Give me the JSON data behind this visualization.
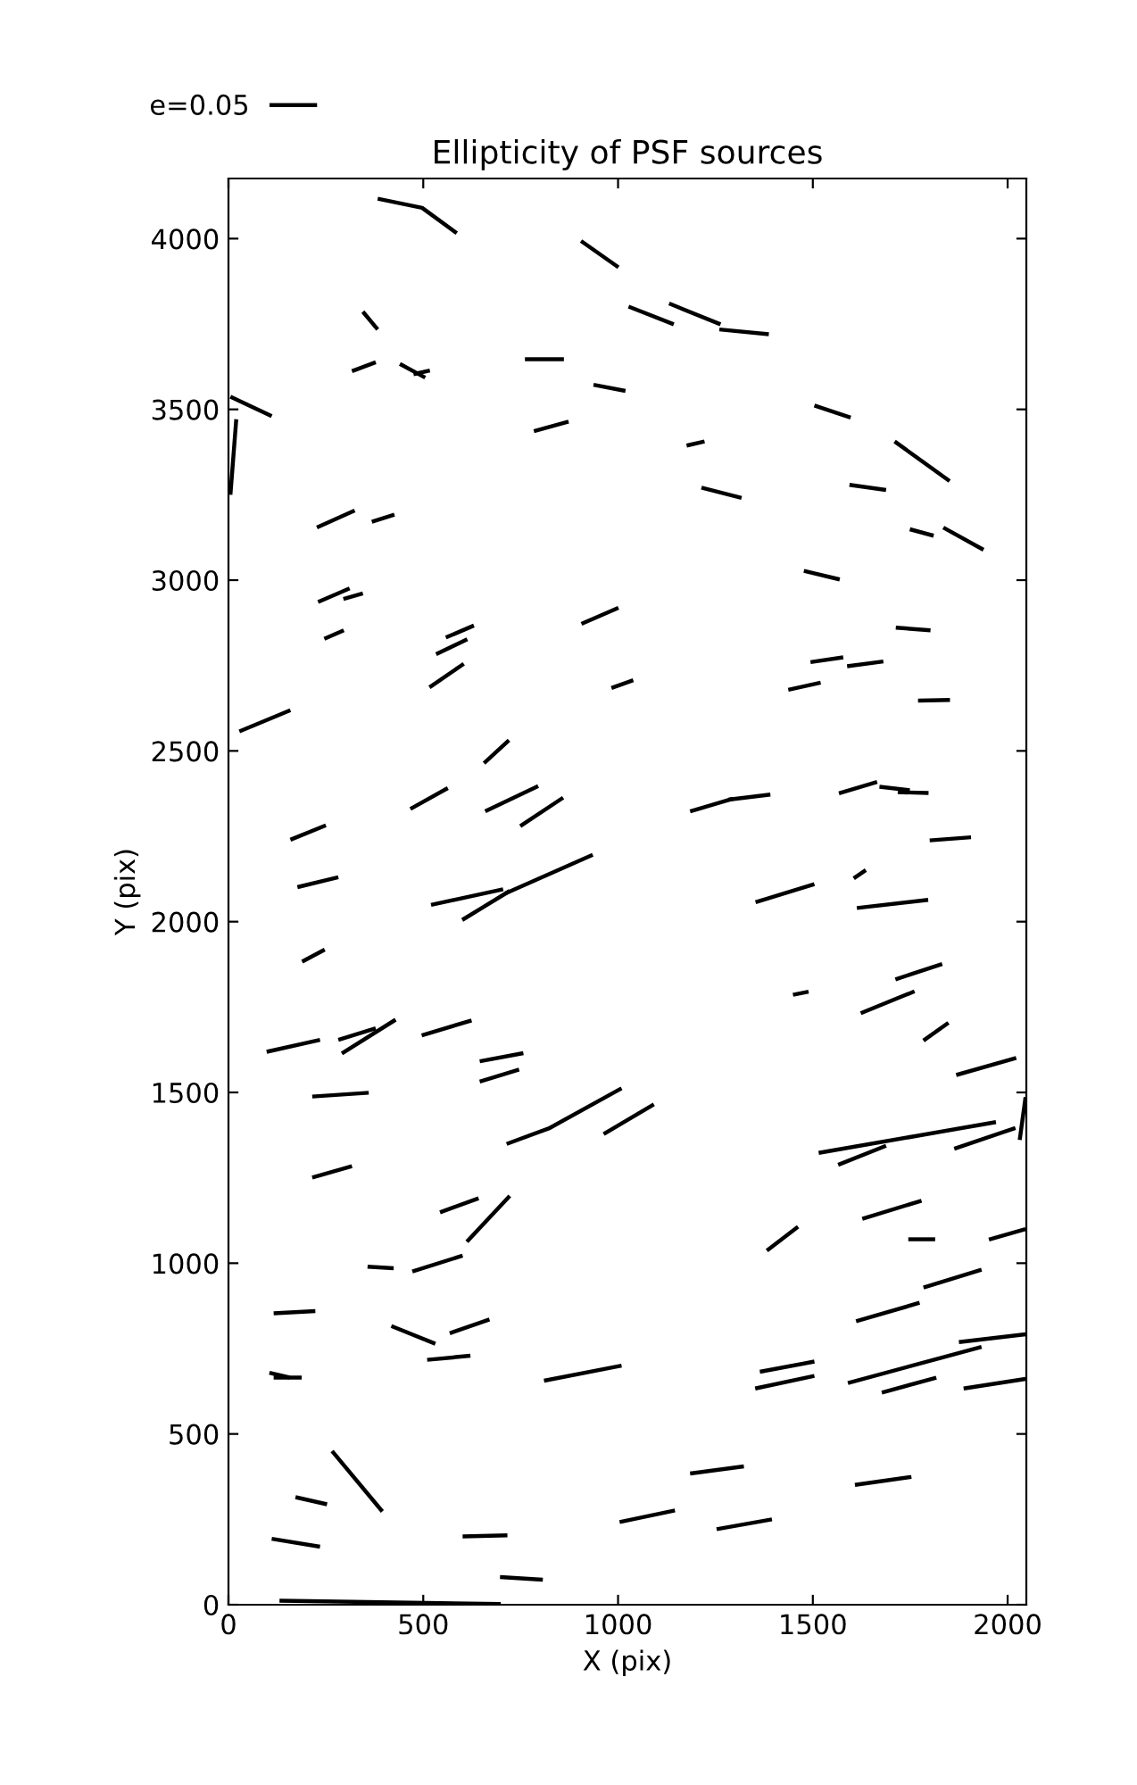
{
  "chart_data": {
    "type": "line",
    "title": "Ellipticity of PSF sources",
    "xlabel": "X (pix)",
    "ylabel": "Y (pix)",
    "xlim": [
      0,
      2048
    ],
    "ylim": [
      0,
      4176
    ],
    "xticks": [
      0,
      500,
      1000,
      1500,
      2000
    ],
    "yticks": [
      0,
      500,
      1000,
      1500,
      2000,
      2500,
      3000,
      3500,
      4000
    ],
    "grid": false,
    "legend": "top left",
    "line_style": "solid",
    "marker": "none",
    "color": "#000000",
    "series": [
      {
        "name": "e=0.05",
        "x": [
          383,
          497,
          586
        ],
        "values": [
          4117,
          4090,
          4016
        ]
      },
      {
        "x": [
          905,
          1001
        ],
        "values": [
          3993,
          3916
        ]
      },
      {
        "x": [
          345,
          383
        ],
        "values": [
          3786,
          3734
        ]
      },
      {
        "x": [
          317,
          378
        ],
        "values": [
          3612,
          3638
        ]
      },
      {
        "x": [
          440,
          505
        ],
        "values": [
          3633,
          3593
        ]
      },
      {
        "x": [
          475,
          517
        ],
        "values": [
          3603,
          3614
        ]
      },
      {
        "x": [
          761,
          861
        ],
        "values": [
          3647,
          3647
        ]
      },
      {
        "x": [
          937,
          1019
        ],
        "values": [
          3572,
          3554
        ]
      },
      {
        "x": [
          5,
          111
        ],
        "values": [
          3537,
          3480
        ]
      },
      {
        "x": [
          20,
          5
        ],
        "values": [
          3471,
          3250
        ]
      },
      {
        "x": [
          784,
          873
        ],
        "values": [
          3436,
          3464
        ]
      },
      {
        "x": [
          227,
          324
        ],
        "values": [
          3154,
          3204
        ]
      },
      {
        "x": [
          368,
          426
        ],
        "values": [
          3171,
          3192
        ]
      },
      {
        "x": [
          230,
          311
        ],
        "values": [
          2936,
          2976
        ]
      },
      {
        "x": [
          295,
          345
        ],
        "values": [
          2945,
          2961
        ]
      },
      {
        "x": [
          246,
          296
        ],
        "values": [
          2828,
          2853
        ]
      },
      {
        "x": [
          558,
          630
        ],
        "values": [
          2832,
          2867
        ]
      },
      {
        "x": [
          533,
          613
        ],
        "values": [
          2783,
          2827
        ]
      },
      {
        "x": [
          516,
          604
        ],
        "values": [
          2686,
          2755
        ]
      },
      {
        "x": [
          906,
          1001
        ],
        "values": [
          2872,
          2919
        ]
      },
      {
        "x": [
          983,
          1039
        ],
        "values": [
          2684,
          2707
        ]
      },
      {
        "x": [
          28,
          159
        ],
        "values": [
          2557,
          2619
        ]
      },
      {
        "x": [
          656,
          720
        ],
        "values": [
          2464,
          2531
        ]
      },
      {
        "x": [
          467,
          563
        ],
        "values": [
          2330,
          2391
        ]
      },
      {
        "x": [
          659,
          795
        ],
        "values": [
          2323,
          2397
        ]
      },
      {
        "x": [
          749,
          859
        ],
        "values": [
          2280,
          2363
        ]
      },
      {
        "x": [
          159,
          250
        ],
        "values": [
          2240,
          2282
        ]
      },
      {
        "x": [
          177,
          282
        ],
        "values": [
          2101,
          2130
        ]
      },
      {
        "x": [
          711,
          935
        ],
        "values": [
          2083,
          2196
        ]
      },
      {
        "x": [
          520,
          705
        ],
        "values": [
          2049,
          2095
        ]
      },
      {
        "x": [
          600,
          722
        ],
        "values": [
          2005,
          2090
        ]
      },
      {
        "x": [
          1027,
          1143
        ],
        "values": [
          3801,
          3749
        ]
      },
      {
        "x": [
          1131,
          1263
        ],
        "values": [
          3810,
          3749
        ]
      },
      {
        "x": [
          1260,
          1387
        ],
        "values": [
          3734,
          3720
        ]
      },
      {
        "x": [
          1504,
          1597
        ],
        "values": [
          3511,
          3476
        ]
      },
      {
        "x": [
          1176,
          1222
        ],
        "values": [
          3394,
          3406
        ]
      },
      {
        "x": [
          1710,
          1851
        ],
        "values": [
          3406,
          3290
        ]
      },
      {
        "x": [
          1214,
          1317
        ],
        "values": [
          3271,
          3241
        ]
      },
      {
        "x": [
          1594,
          1688
        ],
        "values": [
          3279,
          3264
        ]
      },
      {
        "x": [
          1749,
          1810
        ],
        "values": [
          3149,
          3130
        ]
      },
      {
        "x": [
          1835,
          1938
        ],
        "values": [
          3154,
          3089
        ]
      },
      {
        "x": [
          1477,
          1569
        ],
        "values": [
          3027,
          3002
        ]
      },
      {
        "x": [
          1713,
          1802
        ],
        "values": [
          2861,
          2853
        ]
      },
      {
        "x": [
          1494,
          1578
        ],
        "values": [
          2760,
          2774
        ]
      },
      {
        "x": [
          1588,
          1681
        ],
        "values": [
          2748,
          2762
        ]
      },
      {
        "x": [
          1437,
          1520
        ],
        "values": [
          2679,
          2700
        ]
      },
      {
        "x": [
          1770,
          1852
        ],
        "values": [
          2647,
          2649
        ]
      },
      {
        "x": [
          1185,
          1295
        ],
        "values": [
          2323,
          2360
        ]
      },
      {
        "x": [
          1283,
          1391
        ],
        "values": [
          2357,
          2372
        ]
      },
      {
        "x": [
          1567,
          1665
        ],
        "values": [
          2376,
          2409
        ]
      },
      {
        "x": [
          1671,
          1749
        ],
        "values": [
          2395,
          2385
        ]
      },
      {
        "x": [
          1718,
          1797
        ],
        "values": [
          2379,
          2377
        ]
      },
      {
        "x": [
          1800,
          1906
        ],
        "values": [
          2238,
          2247
        ]
      },
      {
        "x": [
          1605,
          1636
        ],
        "values": [
          2127,
          2151
        ]
      },
      {
        "x": [
          1353,
          1504
        ],
        "values": [
          2057,
          2110
        ]
      },
      {
        "x": [
          1613,
          1796
        ],
        "values": [
          2040,
          2064
        ]
      },
      {
        "x": [
          1712,
          1832
        ],
        "values": [
          1831,
          1876
        ]
      },
      {
        "x": [
          1449,
          1489
        ],
        "values": [
          1786,
          1795
        ]
      },
      {
        "x": [
          1623,
          1761
        ],
        "values": [
          1732,
          1796
        ]
      },
      {
        "x": [
          1784,
          1848
        ],
        "values": [
          1652,
          1704
        ]
      },
      {
        "x": [
          1868,
          2022
        ],
        "values": [
          1551,
          1601
        ]
      },
      {
        "x": [
          963,
          1092
        ],
        "values": [
          1378,
          1465
        ]
      },
      {
        "x": [
          714,
          825,
          1009
        ],
        "values": [
          1349,
          1396,
          1512
        ]
      },
      {
        "x": [
          1515,
          1970
        ],
        "values": [
          1323,
          1413
        ]
      },
      {
        "x": [
          1565,
          1688
        ],
        "values": [
          1288,
          1344
        ]
      },
      {
        "x": [
          1863,
          2020
        ],
        "values": [
          1335,
          1396
        ]
      },
      {
        "x": [
          2031,
          2046
        ],
        "values": [
          1361,
          1486
        ]
      },
      {
        "x": [
          1382,
          1462
        ],
        "values": [
          1037,
          1107
        ]
      },
      {
        "x": [
          1627,
          1779
        ],
        "values": [
          1130,
          1183
        ]
      },
      {
        "x": [
          1745,
          1814
        ],
        "values": [
          1070,
          1070
        ]
      },
      {
        "x": [
          1952,
          2046
        ],
        "values": [
          1069,
          1100
        ]
      },
      {
        "x": [
          1784,
          1933
        ],
        "values": [
          929,
          981
        ]
      },
      {
        "x": [
          1611,
          1774
        ],
        "values": [
          830,
          884
        ]
      },
      {
        "x": [
          1875,
          2046
        ],
        "values": [
          769,
          792
        ]
      },
      {
        "x": [
          1590,
          1933
        ],
        "values": [
          649,
          755
        ]
      },
      {
        "x": [
          1677,
          1817
        ],
        "values": [
          621,
          665
        ]
      },
      {
        "x": [
          1887,
          2046
        ],
        "values": [
          633,
          661
        ]
      },
      {
        "x": [
          1364,
          1504
        ],
        "values": [
          682,
          712
        ]
      },
      {
        "x": [
          1352,
          1504
        ],
        "values": [
          633,
          670
        ]
      },
      {
        "x": [
          1185,
          1323
        ],
        "values": [
          384,
          405
        ]
      },
      {
        "x": [
          1608,
          1753
        ],
        "values": [
          351,
          374
        ]
      },
      {
        "x": [
          1004,
          1146
        ],
        "values": [
          242,
          276
        ]
      },
      {
        "x": [
          1253,
          1395
        ],
        "values": [
          221,
          250
        ]
      },
      {
        "x": [
          810,
          1009
        ],
        "values": [
          656,
          700
        ]
      },
      {
        "x": [
          189,
          247
        ],
        "values": [
          1883,
          1918
        ]
      },
      {
        "x": [
          98,
          235
        ],
        "values": [
          1619,
          1654
        ]
      },
      {
        "x": [
          282,
          378
        ],
        "values": [
          1654,
          1688
        ]
      },
      {
        "x": [
          291,
          429
        ],
        "values": [
          1614,
          1713
        ]
      },
      {
        "x": [
          496,
          624
        ],
        "values": [
          1667,
          1711
        ]
      },
      {
        "x": [
          645,
          757
        ],
        "values": [
          1591,
          1615
        ]
      },
      {
        "x": [
          645,
          746
        ],
        "values": [
          1532,
          1567
        ]
      },
      {
        "x": [
          215,
          360
        ],
        "values": [
          1488,
          1499
        ]
      },
      {
        "x": [
          215,
          317
        ],
        "values": [
          1251,
          1284
        ]
      },
      {
        "x": [
          543,
          642
        ],
        "values": [
          1149,
          1190
        ]
      },
      {
        "x": [
          612,
          722
        ],
        "values": [
          1063,
          1197
        ]
      },
      {
        "x": [
          357,
          424
        ],
        "values": [
          990,
          985
        ]
      },
      {
        "x": [
          472,
          601
        ],
        "values": [
          976,
          1022
        ]
      },
      {
        "x": [
          116,
          223
        ],
        "values": [
          853,
          860
        ]
      },
      {
        "x": [
          418,
          531
        ],
        "values": [
          816,
          764
        ]
      },
      {
        "x": [
          568,
          670
        ],
        "values": [
          795,
          835
        ]
      },
      {
        "x": [
          510,
          621
        ],
        "values": [
          717,
          729
        ]
      },
      {
        "x": [
          105,
          157
        ],
        "values": [
          679,
          665
        ]
      },
      {
        "x": [
          116,
          188
        ],
        "values": [
          665,
          665
        ]
      },
      {
        "x": [
          266,
          395
        ],
        "values": [
          450,
          273
        ]
      },
      {
        "x": [
          172,
          253
        ],
        "values": [
          315,
          294
        ]
      },
      {
        "x": [
          111,
          235
        ],
        "values": [
          193,
          170
        ]
      },
      {
        "x": [
          601,
          716
        ],
        "values": [
          200,
          203
        ]
      },
      {
        "x": [
          697,
          807
        ],
        "values": [
          81,
          73
        ]
      },
      {
        "x": [
          131,
          699
        ],
        "values": [
          12,
          2
        ]
      }
    ]
  }
}
